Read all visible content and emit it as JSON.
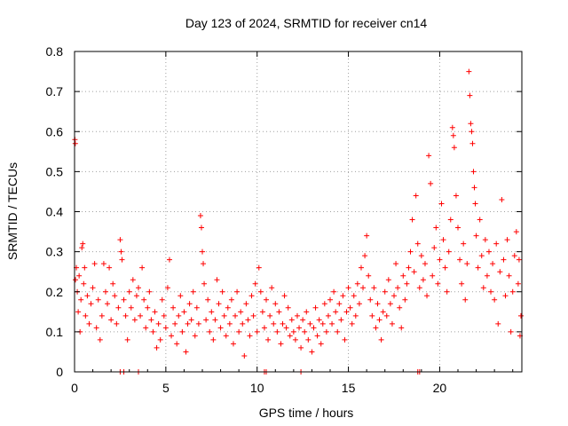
{
  "chart_data": {
    "type": "scatter",
    "title": "Day 123 of 2024, SRMTID for receiver cn14",
    "xlabel": "GPS time / hours",
    "ylabel": "SRMTID / TECUs",
    "xlim": [
      0,
      24.5
    ],
    "ylim": [
      0,
      0.8
    ],
    "xticks": [
      0,
      5,
      10,
      15,
      20
    ],
    "yticks": [
      0,
      0.1,
      0.2,
      0.3,
      0.4,
      0.5,
      0.6,
      0.7,
      0.8
    ],
    "xtick_labels": [
      "0",
      "5",
      "10",
      "15",
      "20"
    ],
    "ytick_labels": [
      "0",
      "0.1",
      "0.2",
      "0.3",
      "0.4",
      "0.5",
      "0.6",
      "0.7",
      "0.8"
    ],
    "grid": true,
    "marker": "+",
    "series_color": "#ff0000",
    "series": [
      {
        "name": "SRMTID",
        "points": [
          [
            0.02,
            0.58
          ],
          [
            0.04,
            0.57
          ],
          [
            0.05,
            0.23
          ],
          [
            0.1,
            0.26
          ],
          [
            0.15,
            0.2
          ],
          [
            0.2,
            0.15
          ],
          [
            0.25,
            0.24
          ],
          [
            0.3,
            0.1
          ],
          [
            0.35,
            0.18
          ],
          [
            0.4,
            0.31
          ],
          [
            0.45,
            0.32
          ],
          [
            0.5,
            0.22
          ],
          [
            0.55,
            0.26
          ],
          [
            0.6,
            0.14
          ],
          [
            0.7,
            0.19
          ],
          [
            0.8,
            0.12
          ],
          [
            0.9,
            0.17
          ],
          [
            1.0,
            0.21
          ],
          [
            1.1,
            0.27
          ],
          [
            1.2,
            0.11
          ],
          [
            1.3,
            0.18
          ],
          [
            1.4,
            0.08
          ],
          [
            1.5,
            0.14
          ],
          [
            1.6,
            0.27
          ],
          [
            1.7,
            0.2
          ],
          [
            1.8,
            0.17
          ],
          [
            1.9,
            0.26
          ],
          [
            2.0,
            0.13
          ],
          [
            2.1,
            0.22
          ],
          [
            2.2,
            0.19
          ],
          [
            2.3,
            0.12
          ],
          [
            2.4,
            0.16
          ],
          [
            2.5,
            0.33
          ],
          [
            2.55,
            0.3
          ],
          [
            2.6,
            0.28
          ],
          [
            2.7,
            0.18
          ],
          [
            2.8,
            0.14
          ],
          [
            2.9,
            0.08
          ],
          [
            3.0,
            0.2
          ],
          [
            3.1,
            0.16
          ],
          [
            3.2,
            0.23
          ],
          [
            3.3,
            0.13
          ],
          [
            3.4,
            0.19
          ],
          [
            3.5,
            0.21
          ],
          [
            3.6,
            0.14
          ],
          [
            3.7,
            0.26
          ],
          [
            3.8,
            0.18
          ],
          [
            3.9,
            0.11
          ],
          [
            4.0,
            0.16
          ],
          [
            4.1,
            0.2
          ],
          [
            4.2,
            0.13
          ],
          [
            4.3,
            0.1
          ],
          [
            4.4,
            0.15
          ],
          [
            4.5,
            0.06
          ],
          [
            4.6,
            0.12
          ],
          [
            4.7,
            0.08
          ],
          [
            4.8,
            0.18
          ],
          [
            4.9,
            0.14
          ],
          [
            5.0,
            0.11
          ],
          [
            5.1,
            0.21
          ],
          [
            5.2,
            0.28
          ],
          [
            5.3,
            0.09
          ],
          [
            5.4,
            0.16
          ],
          [
            5.5,
            0.12
          ],
          [
            5.6,
            0.07
          ],
          [
            5.7,
            0.14
          ],
          [
            5.8,
            0.19
          ],
          [
            5.9,
            0.1
          ],
          [
            6.0,
            0.15
          ],
          [
            6.1,
            0.05
          ],
          [
            6.2,
            0.12
          ],
          [
            6.3,
            0.17
          ],
          [
            6.4,
            0.13
          ],
          [
            6.5,
            0.2
          ],
          [
            6.6,
            0.09
          ],
          [
            6.7,
            0.16
          ],
          [
            6.8,
            0.12
          ],
          [
            6.9,
            0.39
          ],
          [
            6.95,
            0.36
          ],
          [
            7.0,
            0.3
          ],
          [
            7.05,
            0.27
          ],
          [
            7.1,
            0.22
          ],
          [
            7.2,
            0.13
          ],
          [
            7.3,
            0.18
          ],
          [
            7.4,
            0.1
          ],
          [
            7.5,
            0.15
          ],
          [
            7.6,
            0.08
          ],
          [
            7.7,
            0.13
          ],
          [
            7.8,
            0.23
          ],
          [
            7.9,
            0.17
          ],
          [
            8.0,
            0.11
          ],
          [
            8.1,
            0.2
          ],
          [
            8.2,
            0.14
          ],
          [
            8.3,
            0.09
          ],
          [
            8.4,
            0.16
          ],
          [
            8.5,
            0.12
          ],
          [
            8.6,
            0.18
          ],
          [
            8.7,
            0.07
          ],
          [
            8.8,
            0.14
          ],
          [
            8.9,
            0.2
          ],
          [
            9.0,
            0.1
          ],
          [
            9.1,
            0.15
          ],
          [
            9.2,
            0.12
          ],
          [
            9.3,
            0.04
          ],
          [
            9.4,
            0.17
          ],
          [
            9.5,
            0.13
          ],
          [
            9.6,
            0.09
          ],
          [
            9.7,
            0.19
          ],
          [
            9.8,
            0.14
          ],
          [
            9.9,
            0.22
          ],
          [
            10.0,
            0.1
          ],
          [
            10.1,
            0.26
          ],
          [
            10.2,
            0.2
          ],
          [
            10.3,
            0.15
          ],
          [
            10.4,
            0.11
          ],
          [
            10.5,
            0.18
          ],
          [
            10.6,
            0.08
          ],
          [
            10.7,
            0.14
          ],
          [
            10.8,
            0.21
          ],
          [
            10.9,
            0.12
          ],
          [
            11.0,
            0.17
          ],
          [
            11.1,
            0.1
          ],
          [
            11.2,
            0.15
          ],
          [
            11.3,
            0.07
          ],
          [
            11.4,
            0.12
          ],
          [
            11.5,
            0.19
          ],
          [
            11.6,
            0.11
          ],
          [
            11.7,
            0.16
          ],
          [
            11.8,
            0.09
          ],
          [
            11.9,
            0.13
          ],
          [
            12.0,
            0.1
          ],
          [
            12.1,
            0.08
          ],
          [
            12.2,
            0.14
          ],
          [
            12.3,
            0.11
          ],
          [
            12.4,
            0.06
          ],
          [
            12.5,
            0.13
          ],
          [
            12.6,
            0.1
          ],
          [
            12.7,
            0.15
          ],
          [
            12.8,
            0.08
          ],
          [
            12.9,
            0.12
          ],
          [
            13.0,
            0.05
          ],
          [
            13.1,
            0.11
          ],
          [
            13.2,
            0.16
          ],
          [
            13.3,
            0.09
          ],
          [
            13.4,
            0.13
          ],
          [
            13.5,
            0.07
          ],
          [
            13.6,
            0.12
          ],
          [
            13.7,
            0.17
          ],
          [
            13.8,
            0.1
          ],
          [
            13.9,
            0.14
          ],
          [
            14.0,
            0.18
          ],
          [
            14.1,
            0.12
          ],
          [
            14.2,
            0.2
          ],
          [
            14.3,
            0.15
          ],
          [
            14.4,
            0.1
          ],
          [
            14.5,
            0.17
          ],
          [
            14.6,
            0.13
          ],
          [
            14.7,
            0.19
          ],
          [
            14.8,
            0.08
          ],
          [
            14.9,
            0.15
          ],
          [
            15.0,
            0.21
          ],
          [
            15.1,
            0.16
          ],
          [
            15.2,
            0.12
          ],
          [
            15.3,
            0.19
          ],
          [
            15.4,
            0.14
          ],
          [
            15.5,
            0.22
          ],
          [
            15.6,
            0.17
          ],
          [
            15.7,
            0.26
          ],
          [
            15.8,
            0.21
          ],
          [
            15.9,
            0.29
          ],
          [
            16.0,
            0.34
          ],
          [
            16.1,
            0.24
          ],
          [
            16.2,
            0.18
          ],
          [
            16.3,
            0.14
          ],
          [
            16.4,
            0.21
          ],
          [
            16.5,
            0.11
          ],
          [
            16.6,
            0.17
          ],
          [
            16.7,
            0.13
          ],
          [
            16.8,
            0.08
          ],
          [
            16.9,
            0.15
          ],
          [
            17.0,
            0.2
          ],
          [
            17.1,
            0.14
          ],
          [
            17.2,
            0.23
          ],
          [
            17.3,
            0.17
          ],
          [
            17.4,
            0.12
          ],
          [
            17.5,
            0.19
          ],
          [
            17.6,
            0.27
          ],
          [
            17.7,
            0.21
          ],
          [
            17.8,
            0.16
          ],
          [
            17.9,
            0.11
          ],
          [
            18.0,
            0.24
          ],
          [
            18.1,
            0.18
          ],
          [
            18.2,
            0.22
          ],
          [
            18.3,
            0.26
          ],
          [
            18.4,
            0.3
          ],
          [
            18.5,
            0.38
          ],
          [
            18.6,
            0.25
          ],
          [
            18.7,
            0.44
          ],
          [
            18.8,
            0.32
          ],
          [
            18.9,
            0.21
          ],
          [
            19.0,
            0.29
          ],
          [
            19.1,
            0.23
          ],
          [
            19.2,
            0.27
          ],
          [
            19.3,
            0.19
          ],
          [
            19.4,
            0.54
          ],
          [
            19.5,
            0.47
          ],
          [
            19.6,
            0.24
          ],
          [
            19.7,
            0.31
          ],
          [
            19.8,
            0.36
          ],
          [
            19.9,
            0.22
          ],
          [
            20.0,
            0.28
          ],
          [
            20.1,
            0.42
          ],
          [
            20.2,
            0.33
          ],
          [
            20.3,
            0.26
          ],
          [
            20.4,
            0.2
          ],
          [
            20.5,
            0.3
          ],
          [
            20.6,
            0.38
          ],
          [
            20.7,
            0.61
          ],
          [
            20.75,
            0.59
          ],
          [
            20.8,
            0.56
          ],
          [
            20.9,
            0.44
          ],
          [
            21.0,
            0.36
          ],
          [
            21.1,
            0.28
          ],
          [
            21.2,
            0.22
          ],
          [
            21.3,
            0.32
          ],
          [
            21.4,
            0.18
          ],
          [
            21.5,
            0.27
          ],
          [
            21.6,
            0.75
          ],
          [
            21.65,
            0.69
          ],
          [
            21.7,
            0.62
          ],
          [
            21.75,
            0.6
          ],
          [
            21.8,
            0.57
          ],
          [
            21.85,
            0.5
          ],
          [
            21.9,
            0.46
          ],
          [
            21.95,
            0.42
          ],
          [
            22.0,
            0.34
          ],
          [
            22.1,
            0.26
          ],
          [
            22.2,
            0.38
          ],
          [
            22.3,
            0.29
          ],
          [
            22.4,
            0.21
          ],
          [
            22.5,
            0.33
          ],
          [
            22.6,
            0.24
          ],
          [
            22.7,
            0.3
          ],
          [
            22.8,
            0.2
          ],
          [
            22.9,
            0.27
          ],
          [
            23.0,
            0.18
          ],
          [
            23.1,
            0.32
          ],
          [
            23.2,
            0.12
          ],
          [
            23.3,
            0.25
          ],
          [
            23.4,
            0.43
          ],
          [
            23.5,
            0.28
          ],
          [
            23.6,
            0.19
          ],
          [
            23.7,
            0.33
          ],
          [
            23.8,
            0.24
          ],
          [
            23.9,
            0.1
          ],
          [
            24.0,
            0.2
          ],
          [
            24.1,
            0.29
          ],
          [
            24.2,
            0.35
          ],
          [
            24.3,
            0.22
          ],
          [
            24.35,
            0.28
          ],
          [
            24.4,
            0.09
          ],
          [
            24.45,
            0.14
          ],
          [
            2.5,
            0.0
          ],
          [
            2.7,
            0.0
          ],
          [
            3.5,
            0.0
          ],
          [
            10.4,
            0.0
          ],
          [
            10.5,
            0.0
          ],
          [
            12.4,
            0.0
          ],
          [
            18.8,
            0.0
          ],
          [
            18.9,
            0.0
          ]
        ]
      }
    ]
  }
}
